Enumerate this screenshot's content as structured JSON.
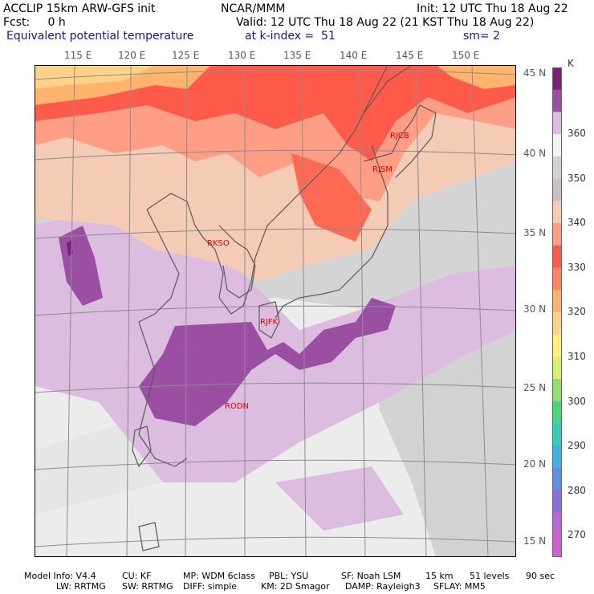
{
  "header": {
    "line1_left": "ACCLIP 15km ARW-GFS init",
    "line1_center": "NCAR/MMM",
    "line1_right": "Init: 12 UTC Thu 18 Aug 22",
    "line2_left": "Fcst:     0 h",
    "line2_right": "Valid: 12 UTC Thu 18 Aug 22 (21 KST Thu 18 Aug 22)",
    "line3_left": "Equivalent potential temperature",
    "line3_center": "at k-index =  51",
    "line3_right": "sm= 2"
  },
  "axes": {
    "lon_labels": [
      "115 E",
      "120 E",
      "125 E",
      "130 E",
      "135 E",
      "140 E",
      "145 E",
      "150 E"
    ],
    "lat_labels": [
      "45 N",
      "40 N",
      "35 N",
      "30 N",
      "25 N",
      "20 N",
      "15 N"
    ]
  },
  "stations": [
    {
      "id": "RJCB",
      "label": "RJCB"
    },
    {
      "id": "RJSM",
      "label": "RJSM"
    },
    {
      "id": "RKSO",
      "label": "RKSO"
    },
    {
      "id": "RJFK",
      "label": "RJFK"
    },
    {
      "id": "RODN",
      "label": "RODN"
    }
  ],
  "colorbar": {
    "unit": "K",
    "labels": [
      "360",
      "350",
      "340",
      "330",
      "320",
      "310",
      "300",
      "290",
      "280",
      "270"
    ],
    "colors": [
      "#7b1f79",
      "#9a4fa3",
      "#dcbde0",
      "#f2f2f2",
      "#d2d2d2",
      "#c8bfbf",
      "#f4cbb4",
      "#ff9d85",
      "#ff5a4a",
      "#ff8560",
      "#ffb46e",
      "#ffd28a",
      "#fff07a",
      "#d9f070",
      "#8fe070",
      "#49d77e",
      "#2fd1b4",
      "#3fb2e0",
      "#5d8fe6",
      "#8a6fdc",
      "#b86ad2",
      "#d35dd2"
    ]
  },
  "footer": {
    "line1": [
      "Model Info: V4.4",
      "CU: KF",
      "MP: WDM 6class",
      "PBL: YSU",
      "SF: Noah LSM",
      "15 km",
      "51 levels",
      "90 sec"
    ],
    "line2": [
      "LW: RRTMG",
      "SW: RRTMG",
      "DIFF: simple",
      "KM: 2D Smagor",
      "DAMP: Rayleigh3",
      "SFLAY: MM5"
    ]
  }
}
